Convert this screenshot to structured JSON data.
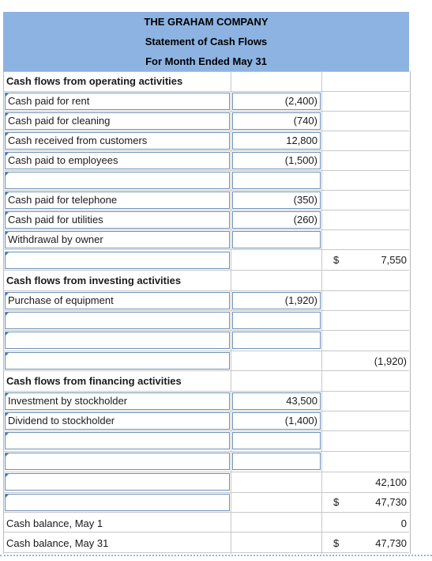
{
  "header": {
    "company": "THE GRAHAM COMPANY",
    "statement": "Statement of Cash Flows",
    "period": "For Month Ended May 31"
  },
  "operating": {
    "heading": "Cash flows from operating activities",
    "items": [
      {
        "label": "Cash paid for rent",
        "amount": "(2,400)"
      },
      {
        "label": "Cash paid for cleaning",
        "amount": "(740)"
      },
      {
        "label": "Cash received from customers",
        "amount": "12,800"
      },
      {
        "label": "Cash paid to employees",
        "amount": "(1,500)"
      },
      {
        "label": "",
        "amount": ""
      },
      {
        "label": "Cash paid for telephone",
        "amount": "(350)"
      },
      {
        "label": "Cash paid for utilities",
        "amount": "(260)"
      },
      {
        "label": "Withdrawal by owner",
        "amount": ""
      }
    ],
    "currency": "$",
    "total": "7,550"
  },
  "investing": {
    "heading": "Cash flows from investing activities",
    "items": [
      {
        "label": "Purchase of equipment",
        "amount": "(1,920)"
      },
      {
        "label": "",
        "amount": ""
      },
      {
        "label": "",
        "amount": ""
      }
    ],
    "total": "(1,920)"
  },
  "financing": {
    "heading": "Cash flows from financing activities",
    "items": [
      {
        "label": "Investment by stockholder",
        "amount": "43,500"
      },
      {
        "label": "Dividend to stockholder",
        "amount": "(1,400)"
      },
      {
        "label": "",
        "amount": ""
      },
      {
        "label": "",
        "amount": ""
      }
    ],
    "total": "42,100"
  },
  "summary": {
    "net_change": "47,730",
    "beginning_label": "Cash balance, May 1",
    "beginning_value": "0",
    "ending_label": "Cash balance, May 31",
    "ending_value": "47,730",
    "currency": "$"
  },
  "first_amount_currency": "$"
}
